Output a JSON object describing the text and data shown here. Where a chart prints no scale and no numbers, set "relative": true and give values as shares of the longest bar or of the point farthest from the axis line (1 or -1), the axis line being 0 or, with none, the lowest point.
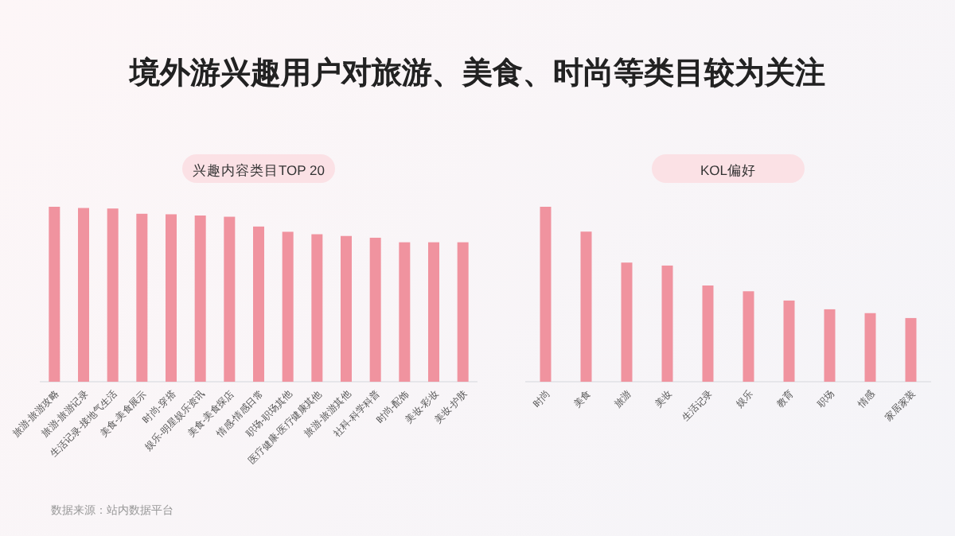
{
  "chart_data": [
    {
      "type": "other",
      "title": "境外游兴趣用户对旅游、美食、时尚等类目较为关注",
      "annotations": [
        "数据来源：站内数据平台"
      ]
    },
    {
      "type": "bar",
      "title": "兴趣内容类目TOP 20",
      "relative": true,
      "color": "#f0939f",
      "categories": [
        "旅游-旅游攻略",
        "旅游-旅游记录",
        "生活记录-接地气生活",
        "美食-美食展示",
        "时尚-穿搭",
        "娱乐-明星娱乐资讯",
        "美食-美食探店",
        "情感-情感日常",
        "职场-职场其他",
        "医疗健康-医疗健康其他",
        "旅游-旅游其他",
        "社科-科学科普",
        "时尚-配饰",
        "美妆-彩妆",
        "美妆-护肤"
      ],
      "values": [
        1,
        0.993,
        0.99,
        0.96,
        0.957,
        0.95,
        0.943,
        0.887,
        0.857,
        0.843,
        0.833,
        0.823,
        0.797,
        0.797,
        0.797
      ]
    },
    {
      "type": "bar",
      "title": "KOL偏好",
      "relative": true,
      "color": "#f0939f",
      "categories": [
        "时尚",
        "美食",
        "旅游",
        "美妆",
        "生活记录",
        "娱乐",
        "教育",
        "职场",
        "情感",
        "家居家装"
      ],
      "values": [
        1,
        0.858,
        0.681,
        0.664,
        0.55,
        0.517,
        0.464,
        0.414,
        0.392,
        0.364
      ]
    }
  ]
}
